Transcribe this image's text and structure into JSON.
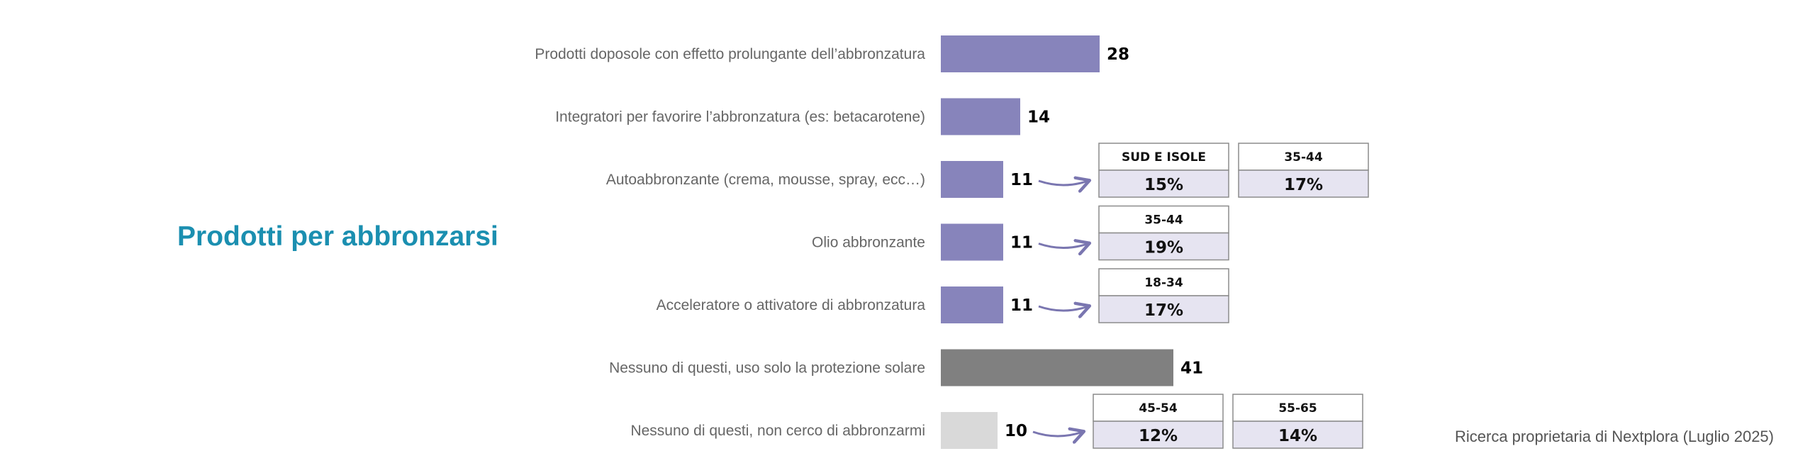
{
  "title": "Prodotti per abbronzarsi",
  "source": "Ricerca proprietaria di Nextplora (Luglio 2025)",
  "colors": {
    "title": "#1b8fb0",
    "bar_main": "#8784bb",
    "bar_none_protection": "#808080",
    "bar_none_tan": "#d9d9d9",
    "arrow": "#7a76b0",
    "box_header_bg": "#ffffff",
    "box_value_bg": "#e6e4f1",
    "box_border": "#8c8c8c"
  },
  "chart_data": {
    "type": "bar",
    "orientation": "horizontal",
    "title": "Prodotti per abbronzarsi",
    "xlabel": "",
    "ylabel": "",
    "xlim": [
      0,
      41
    ],
    "categories": [
      "Prodotti doposole con effetto prolungante dell’abbronzatura",
      "Integratori per favorire l’abbronzatura (es: betacarotene)",
      "Autoabbronzante (crema, mousse, spray, ecc…)",
      "Olio abbronzante",
      "Acceleratore o attivatore di abbronzatura",
      "Nessuno di questi, uso solo la protezione solare",
      "Nessuno di questi, non cerco di abbronzarmi"
    ],
    "values": [
      28,
      14,
      11,
      11,
      11,
      41,
      10
    ],
    "bar_colors": [
      "#8784bb",
      "#8784bb",
      "#8784bb",
      "#8784bb",
      "#8784bb",
      "#808080",
      "#d9d9d9"
    ],
    "callouts": [
      {
        "row": 2,
        "boxes": [
          {
            "label": "SUD E ISOLE",
            "value": "15%"
          },
          {
            "label": "35-44",
            "value": "17%"
          }
        ]
      },
      {
        "row": 3,
        "boxes": [
          {
            "label": "35-44",
            "value": "19%"
          }
        ]
      },
      {
        "row": 4,
        "boxes": [
          {
            "label": "18-34",
            "value": "17%"
          }
        ]
      },
      {
        "row": 6,
        "boxes": [
          {
            "label": "45-54",
            "value": "12%"
          },
          {
            "label": "55-65",
            "value": "14%"
          }
        ]
      }
    ],
    "grid": false,
    "legend": "none"
  }
}
